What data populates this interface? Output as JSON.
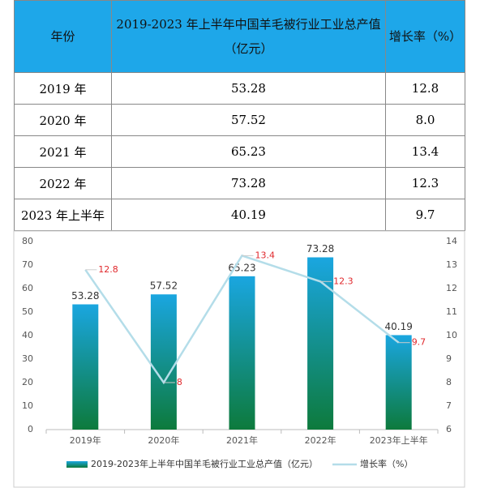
{
  "table": {
    "header": [
      "年份",
      [
        "2019-2023 年上半年中国羊毛被行业工业总产值",
        "（亿元）"
      ],
      "增长率（%）"
    ],
    "rows": [
      [
        "2019 年",
        "53.28",
        "12.8"
      ],
      [
        "2020 年",
        "57.52",
        "8.0"
      ],
      [
        "2021 年",
        "65.23",
        "13.4"
      ],
      [
        "2022 年",
        "73.28",
        "12.3"
      ],
      [
        "2023 年上半年",
        "40.19",
        "9.7"
      ]
    ]
  },
  "chart_data": {
    "type": "bar",
    "categories": [
      "2019年",
      "2020年",
      "2021年",
      "2022年",
      "2023年上半年"
    ],
    "series": [
      {
        "name": "2019-2023年上半年中国羊毛被行业工业总产值（亿元）",
        "color": "#1aa6e0",
        "values": [
          53.28,
          57.52,
          65.23,
          73.28,
          40.19
        ]
      },
      {
        "name": "增长率（%）",
        "type": "line",
        "axis": "y2",
        "color": "#b4dde9",
        "label_color": "#e0282c",
        "values": [
          12.8,
          8,
          13.4,
          12.3,
          9.7
        ]
      }
    ],
    "ylim": [
      0,
      80
    ],
    "yticks": [
      0,
      10,
      20,
      30,
      40,
      50,
      60,
      70,
      80
    ],
    "y2lim": [
      6,
      14
    ],
    "y2ticks": [
      6,
      7,
      8,
      9,
      10,
      11,
      12,
      13,
      14
    ]
  }
}
